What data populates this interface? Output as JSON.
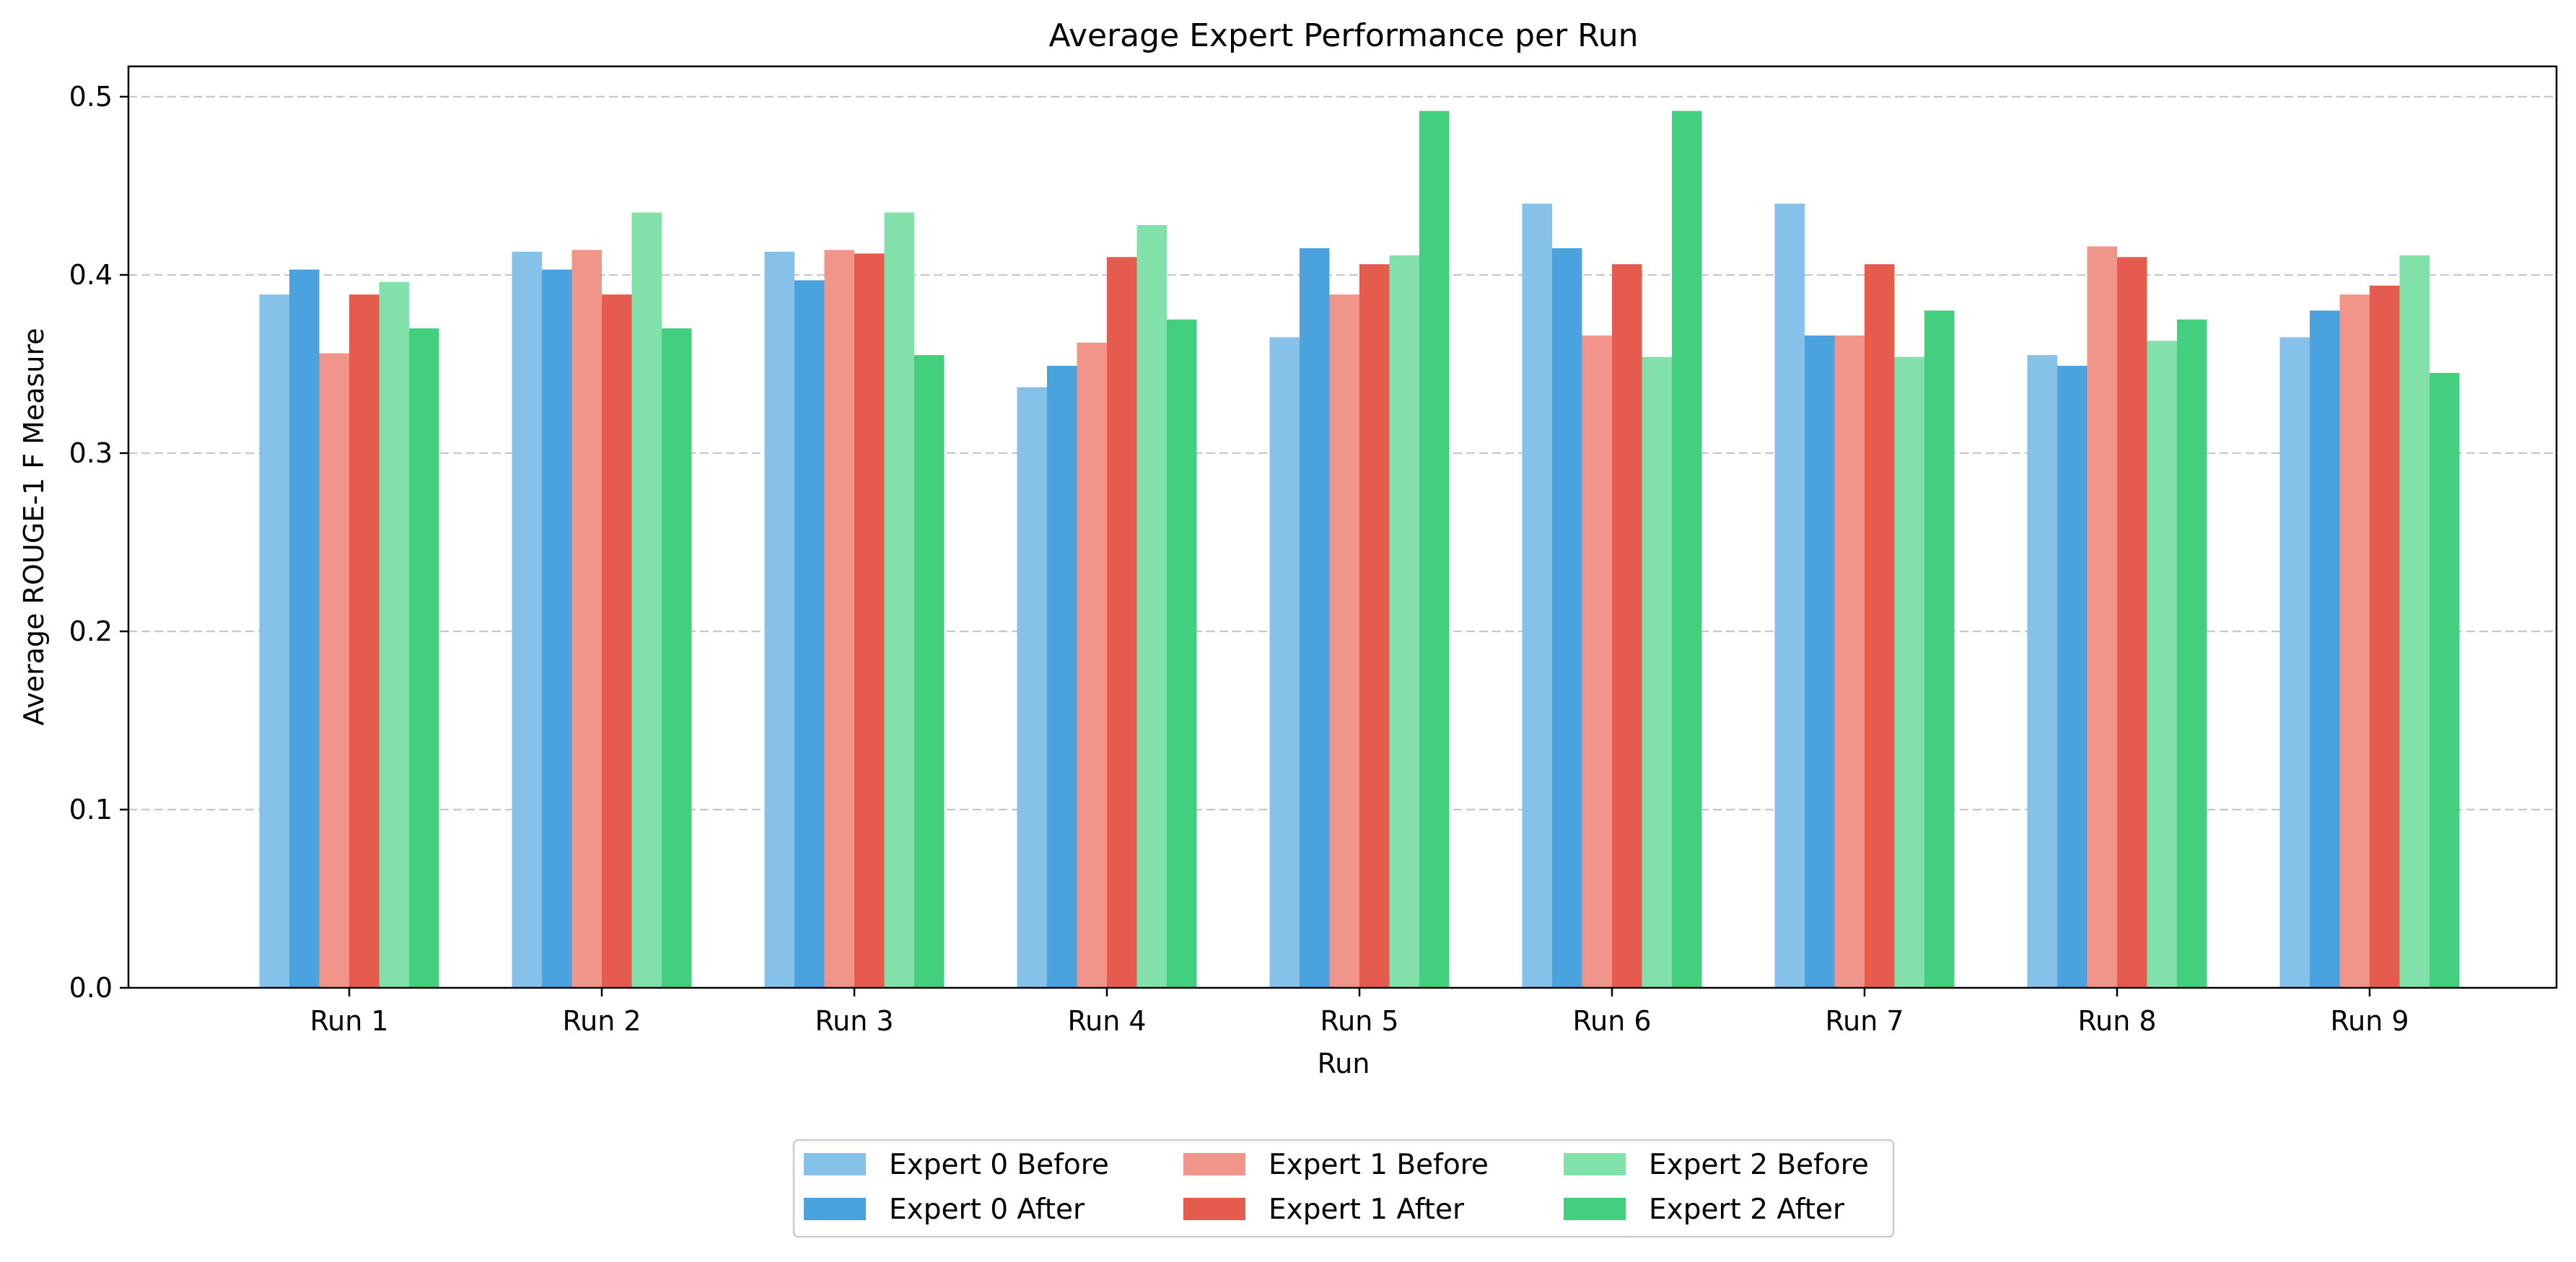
{
  "chart_data": {
    "type": "bar",
    "title": "Average Expert Performance per Run",
    "xlabel": "Run",
    "ylabel": "Average ROUGE-1 F Measure",
    "categories": [
      "Run 1",
      "Run 2",
      "Run 3",
      "Run 4",
      "Run 5",
      "Run 6",
      "Run 7",
      "Run 8",
      "Run 9"
    ],
    "ylim": [
      0,
      0.517
    ],
    "yticks": [
      0.0,
      0.1,
      0.2,
      0.3,
      0.4,
      0.5
    ],
    "ytick_labels": [
      "0.0",
      "0.1",
      "0.2",
      "0.3",
      "0.4",
      "0.5"
    ],
    "grid": "y-dashed",
    "legend_position": "bottom-center",
    "series": [
      {
        "name": "Expert 0 Before",
        "color": "#85c1e9",
        "values": [
          0.389,
          0.413,
          0.413,
          0.337,
          0.365,
          0.44,
          0.44,
          0.355,
          0.365
        ]
      },
      {
        "name": "Expert 0 After",
        "color": "#4aa3df",
        "values": [
          0.403,
          0.403,
          0.397,
          0.349,
          0.415,
          0.415,
          0.366,
          0.349,
          0.38
        ]
      },
      {
        "name": "Expert 1 Before",
        "color": "#f1948a",
        "values": [
          0.356,
          0.414,
          0.414,
          0.362,
          0.389,
          0.366,
          0.366,
          0.416,
          0.389
        ]
      },
      {
        "name": "Expert 1 After",
        "color": "#e55b4d",
        "values": [
          0.389,
          0.389,
          0.412,
          0.41,
          0.406,
          0.406,
          0.406,
          0.41,
          0.394
        ]
      },
      {
        "name": "Expert 2 Before",
        "color": "#82e0aa",
        "values": [
          0.396,
          0.435,
          0.435,
          0.428,
          0.411,
          0.354,
          0.354,
          0.363,
          0.411
        ]
      },
      {
        "name": "Expert 2 After",
        "color": "#42d07f",
        "values": [
          0.37,
          0.37,
          0.355,
          0.375,
          0.492,
          0.492,
          0.38,
          0.375,
          0.345
        ]
      }
    ]
  }
}
